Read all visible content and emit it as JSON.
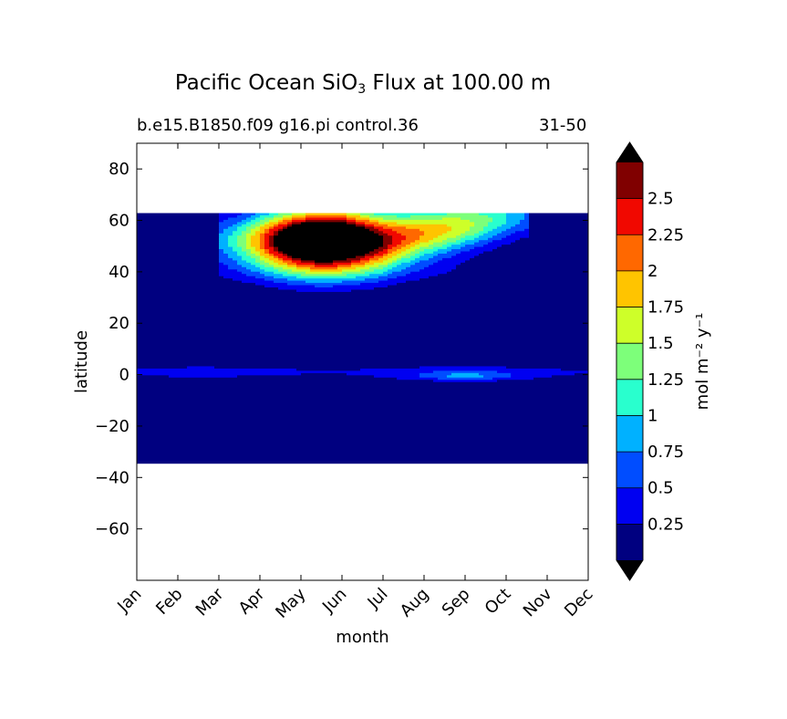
{
  "chart_data": {
    "type": "heatmap",
    "title_main": "Pacific Ocean SiO",
    "title_sub": "3",
    "title_rest": " Flux at 100.00 m",
    "subtitle_left": "b.e15.B1850.f09 g16.pi control.36",
    "subtitle_right": "31-50",
    "xlabel": "month",
    "ylabel": "latitude",
    "x_ticks": [
      "Jan",
      "Feb",
      "Mar",
      "Apr",
      "May",
      "Jun",
      "Jul",
      "Aug",
      "Sep",
      "Oct",
      "Nov",
      "Dec"
    ],
    "xlim": [
      0,
      11
    ],
    "ylim": [
      -80,
      90
    ],
    "y_ticks": [
      80,
      60,
      40,
      20,
      0,
      -20,
      -40,
      -60
    ],
    "y_tick_labels": [
      "80",
      "60",
      "40",
      "20",
      "0",
      "−20",
      "−40",
      "−60"
    ],
    "data_extent_lat": [
      -34,
      63
    ],
    "colorbar": {
      "label": "mol m⁻² y⁻¹",
      "levels": [
        0,
        0.25,
        0.5,
        0.75,
        1,
        1.25,
        1.5,
        1.75,
        2,
        2.25,
        2.5,
        2.75
      ],
      "tick_labels": [
        "0.25",
        "0.5",
        "0.75",
        "1",
        "1.25",
        "1.5",
        "1.75",
        "2",
        "2.25",
        "2.5"
      ],
      "colors": [
        "#000080",
        "#0000f1",
        "#004dff",
        "#00b1ff",
        "#29ffce",
        "#7dff7a",
        "#ceff29",
        "#ffc400",
        "#ff6800",
        "#f10800",
        "#800000"
      ],
      "under_color": "#000000",
      "over_color": "#000000",
      "extend": "both"
    },
    "description_of_field": [
      {
        "region": "northern subpolar band",
        "lat_range": [
          30,
          63
        ],
        "months": "Mar–Oct",
        "peak_value": ">2.75",
        "peak_month": "May–Jun",
        "peak_lat": 55
      },
      {
        "region": "equatorial band",
        "lat_range": [
          -5,
          6
        ],
        "months": "Jan–Dec",
        "value_range": [
          0.25,
          0.75
        ],
        "local_max_month": "Sep–Oct"
      }
    ]
  }
}
